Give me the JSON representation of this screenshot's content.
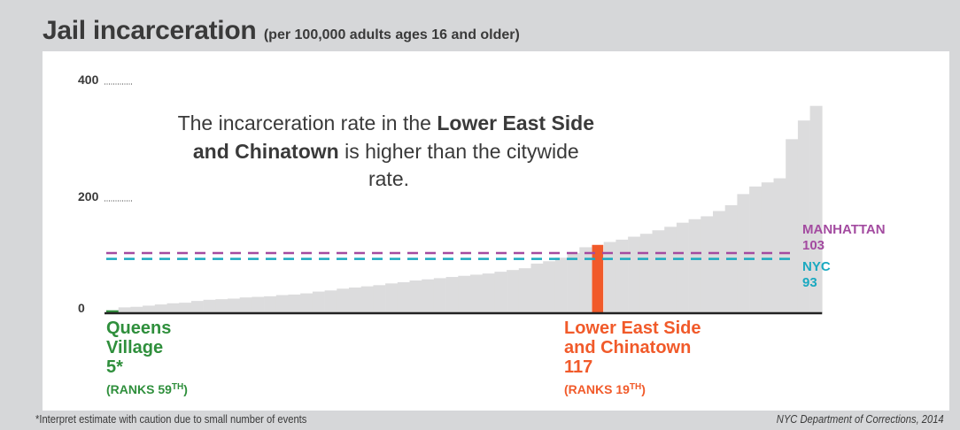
{
  "title": "Jail incarceration",
  "subtitle": "(per 100,000 adults ages 16 and older)",
  "footnote": "*Interpret estimate with caution due to small number of events",
  "source": "NYC Department of Corrections, 2014",
  "colors": {
    "bars": "#dcdcdd",
    "highlight": "#f15a2a",
    "lowest": "#2f8f3c",
    "manhattan": "#a34ba0",
    "nyc": "#1aa9c0",
    "axis": "#222222",
    "text": "#3a3a3a"
  },
  "chart_data": {
    "type": "bar",
    "yticks": [
      0,
      200,
      400
    ],
    "ylim": [
      0,
      400
    ],
    "values": [
      5,
      10,
      11,
      13,
      15,
      17,
      18,
      21,
      23,
      24,
      25,
      27,
      28,
      29,
      31,
      32,
      34,
      37,
      39,
      42,
      44,
      46,
      48,
      51,
      53,
      56,
      58,
      60,
      62,
      64,
      66,
      68,
      71,
      74,
      77,
      85,
      89,
      95,
      103,
      113,
      117,
      122,
      126,
      131,
      136,
      142,
      148,
      155,
      161,
      166,
      175,
      185,
      204,
      217,
      224,
      231,
      298,
      330,
      355
    ],
    "highlight_index": 40,
    "lowest_index": 0,
    "reference_lines": [
      {
        "name": "MANHATTAN",
        "value": 103,
        "label": "MANHATTAN",
        "value_label": "103"
      },
      {
        "name": "NYC",
        "value": 93,
        "label": "NYC",
        "value_label": "93"
      }
    ],
    "callouts": {
      "low": {
        "line1": "Queens",
        "line2": "Village",
        "value": "5*",
        "rank_prefix": "(RANKS 59",
        "rank_sup": "TH",
        "rank_suffix": ")"
      },
      "high": {
        "line1": "Lower East Side",
        "line2": "and Chinatown",
        "value": "117",
        "rank_prefix": "(RANKS 19",
        "rank_sup": "TH",
        "rank_suffix": ")"
      }
    },
    "annotation": {
      "pre": "The incarceration rate in the ",
      "bold1": "Lower East Side",
      "bold2": "and Chinatown",
      "post": " is higher than the citywide",
      "tail": "rate."
    }
  }
}
